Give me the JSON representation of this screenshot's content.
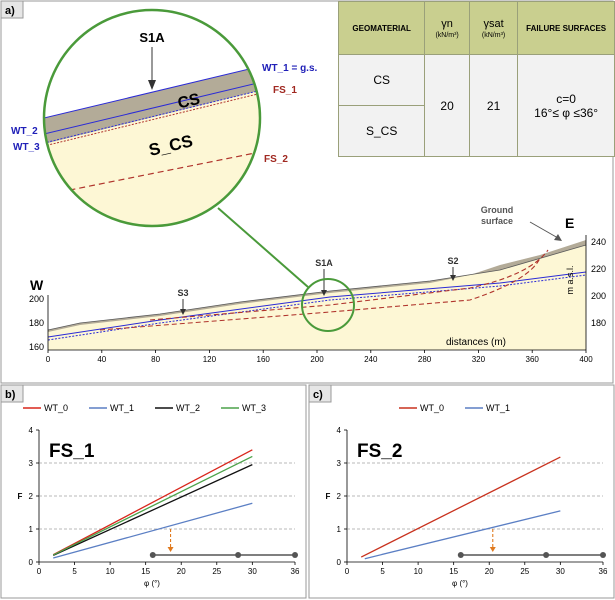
{
  "panel_labels": [
    "a)",
    "b)",
    "c)"
  ],
  "table": {
    "headers": [
      "GEOMATERIAL",
      "γn",
      "(kN/m³)",
      "γsat",
      "(kN/m³)",
      "FAILURE SURFACES"
    ],
    "rows": [
      "CS",
      "S_CS"
    ],
    "gamma_n": "20",
    "gamma_sat": "21",
    "failure_line1": "c=0",
    "failure_line2": "16°≤ φ ≤36°"
  },
  "section": {
    "west": "W",
    "east": "E",
    "ground_surface": "Ground surface",
    "boreholes": [
      "S1A",
      "S2",
      "S3"
    ],
    "x_title": "distances (m)",
    "y_unit": "m a.s.l.",
    "x_ticks": [
      "0",
      "40",
      "80",
      "120",
      "160",
      "200",
      "240",
      "280",
      "320",
      "360",
      "400"
    ],
    "left_ticks": [
      "160",
      "180",
      "200"
    ],
    "right_ticks": [
      "180",
      "200",
      "220",
      "240"
    ]
  },
  "zoom": {
    "borehole": "S1A",
    "layer_top": "CS",
    "layer_bottom": "S_CS",
    "wt1": "WT_1 = g.s.",
    "wt2": "WT_2",
    "wt3": "WT_3",
    "fs1": "FS_1",
    "fs2": "FS_2"
  },
  "chart_data": [
    {
      "type": "line",
      "title": "FS_1",
      "xlabel": "φ (°)",
      "ylabel": "F",
      "xlim": [
        0,
        36
      ],
      "ylim": [
        0,
        4
      ],
      "x_ticks": [
        "0",
        "5",
        "10",
        "15",
        "20",
        "25",
        "30",
        "36"
      ],
      "y_ticks": [
        "0",
        "1",
        "2",
        "3",
        "4"
      ],
      "series": [
        {
          "name": "WT_0",
          "color": "#d9261c",
          "points": [
            [
              2,
              0.22
            ],
            [
              30,
              3.4
            ]
          ]
        },
        {
          "name": "WT_1",
          "color": "#5b7fc4",
          "points": [
            [
              2,
              0.12
            ],
            [
              30,
              1.78
            ]
          ]
        },
        {
          "name": "WT_2",
          "color": "#111111",
          "points": [
            [
              2,
              0.2
            ],
            [
              30,
              2.95
            ]
          ]
        },
        {
          "name": "WT_3",
          "color": "#4ca24a",
          "points": [
            [
              2,
              0.21
            ],
            [
              30,
              3.2
            ]
          ]
        }
      ],
      "critical_phi": 18.5,
      "phi_range": [
        16,
        28,
        36
      ]
    },
    {
      "type": "line",
      "title": "FS_2",
      "xlabel": "φ (°)",
      "ylabel": "F",
      "xlim": [
        0,
        36
      ],
      "ylim": [
        0,
        4
      ],
      "x_ticks": [
        "0",
        "5",
        "10",
        "15",
        "20",
        "25",
        "30",
        "36"
      ],
      "y_ticks": [
        "0",
        "1",
        "2",
        "3",
        "4"
      ],
      "series": [
        {
          "name": "WT_0",
          "color": "#c8321e",
          "points": [
            [
              2,
              0.15
            ],
            [
              30,
              3.18
            ]
          ]
        },
        {
          "name": "WT_1",
          "color": "#5b7fc4",
          "points": [
            [
              2.5,
              0.1
            ],
            [
              30,
              1.55
            ]
          ]
        }
      ],
      "critical_phi": 20.5,
      "phi_range": [
        16,
        28,
        36
      ]
    }
  ]
}
